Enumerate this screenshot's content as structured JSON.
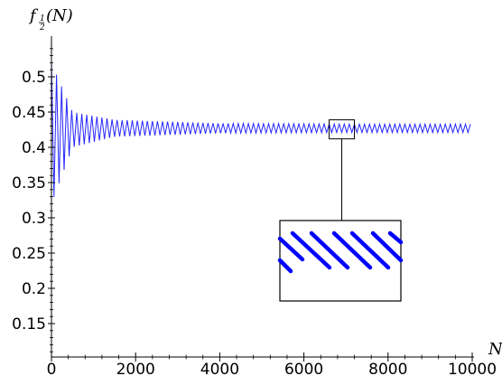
{
  "chart_data": {
    "type": "scatter",
    "xlabel": "N",
    "ylabel": "f_{1/2}(N)",
    "ylabel_main": "f",
    "ylabel_sub_num": "1",
    "ylabel_sub_den": "2",
    "ylabel_arg": "(N)",
    "xlim": [
      0,
      10000
    ],
    "ylim": [
      0.11,
      0.55
    ],
    "x_ticks": [
      0,
      2000,
      4000,
      6000,
      8000,
      10000
    ],
    "x_tick_labels": [
      "0",
      "2000",
      "4000",
      "6000",
      "8000",
      "10000"
    ],
    "y_ticks": [
      0.15,
      0.2,
      0.25,
      0.3,
      0.35,
      0.4,
      0.45,
      0.5
    ],
    "y_tick_labels": [
      "0.15",
      "0.2",
      "0.25",
      "0.3",
      "0.35",
      "0.4",
      "0.45",
      "0.5"
    ],
    "series": [
      {
        "color": "#0000ff",
        "description_of_values": "oscillating sequence converging from wide spread near N=0 to a narrow band around 0.425-0.43",
        "n_max": 10000,
        "center": 0.427,
        "band_center_values": [
          0.42,
          0.425,
          0.427,
          0.427,
          0.427,
          0.427
        ],
        "band_x": [
          0,
          500,
          1500,
          4000,
          7000,
          10000
        ],
        "band_halfwidth": [
          0.1,
          0.025,
          0.012,
          0.007,
          0.006,
          0.006
        ]
      }
    ],
    "inset": {
      "zoom_region_x": [
        6600,
        7200
      ],
      "zoom_region_y": [
        0.412,
        0.439
      ]
    },
    "grid": false,
    "legend": "none"
  }
}
